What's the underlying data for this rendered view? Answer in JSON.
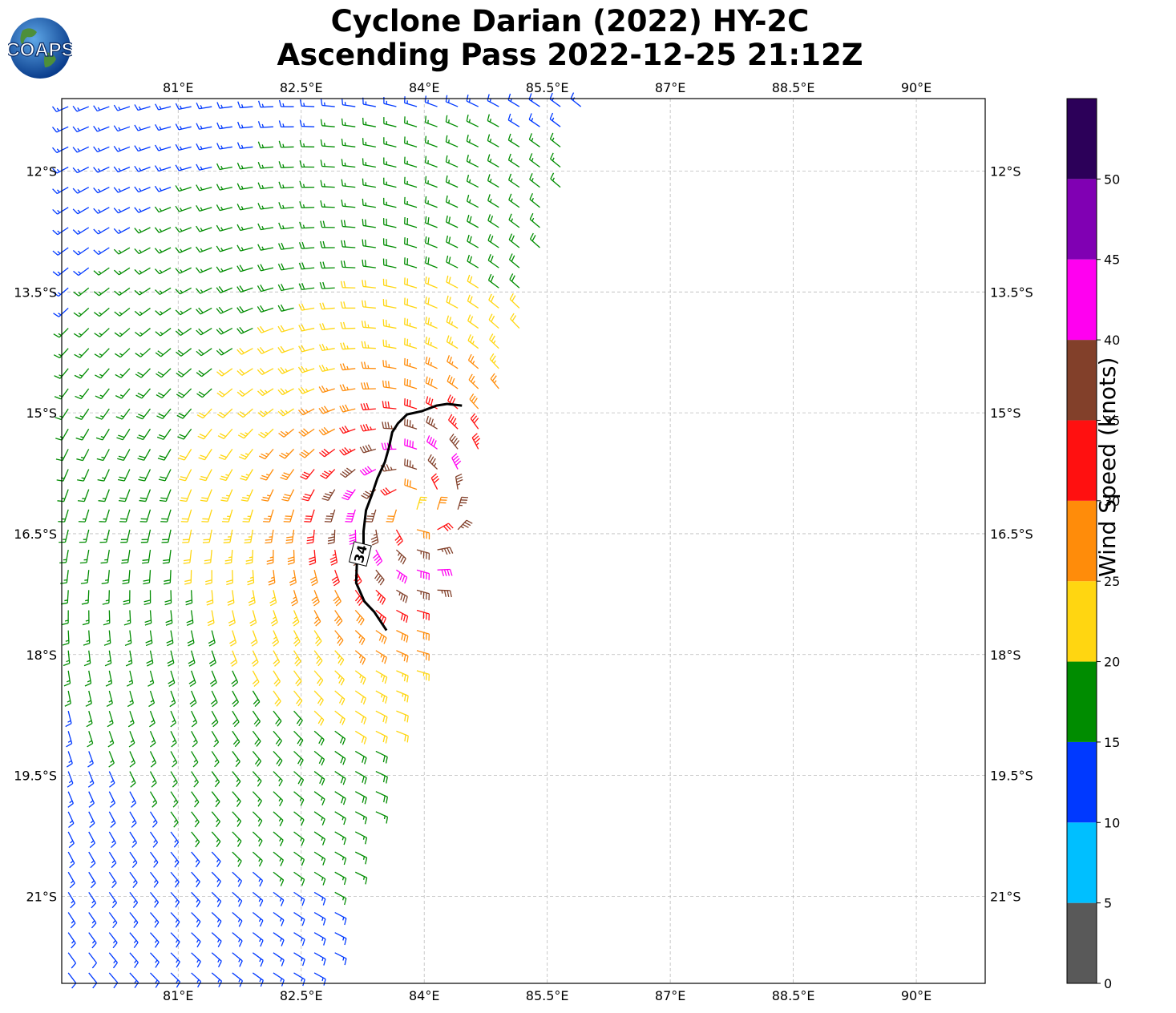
{
  "title": {
    "line1": "Cyclone Darian (2022) HY-2C",
    "line2": "Ascending Pass 2022-12-25 21:12Z"
  },
  "logo": {
    "text": "COAPS",
    "icon": "globe-logo-icon"
  },
  "chart_data": {
    "type": "wind-barb-map",
    "x_label": "",
    "y_label": "",
    "x_ticks": [
      "81°E",
      "82.5°E",
      "84°E",
      "85.5°E",
      "87°E",
      "88.5°E",
      "90°E"
    ],
    "x_tick_values": [
      81,
      82.5,
      84,
      85.5,
      87,
      88.5,
      90
    ],
    "y_ticks": [
      "12°S",
      "13.5°S",
      "15°S",
      "16.5°S",
      "18°S",
      "19.5°S",
      "21°S"
    ],
    "y_tick_values": [
      -12,
      -13.5,
      -15,
      -16.5,
      -18,
      -19.5,
      -21
    ],
    "lon_range": [
      79.58,
      90.84
    ],
    "lat_range": [
      -22.08,
      -11.1
    ],
    "grid": true,
    "contour": {
      "label": "34",
      "level_knots": 34,
      "points": [
        [
          84.46,
          -14.91
        ],
        [
          84.28,
          -14.89
        ],
        [
          84.15,
          -14.91
        ],
        [
          83.97,
          -14.98
        ],
        [
          83.79,
          -15.02
        ],
        [
          83.68,
          -15.13
        ],
        [
          83.61,
          -15.24
        ],
        [
          83.57,
          -15.43
        ],
        [
          83.52,
          -15.61
        ],
        [
          83.43,
          -15.81
        ],
        [
          83.36,
          -16.02
        ],
        [
          83.29,
          -16.21
        ],
        [
          83.26,
          -16.47
        ],
        [
          83.26,
          -16.7
        ],
        [
          83.18,
          -16.83
        ],
        [
          83.17,
          -17.11
        ],
        [
          83.27,
          -17.34
        ],
        [
          83.39,
          -17.47
        ],
        [
          83.54,
          -17.7
        ]
      ]
    },
    "colorbar": {
      "label": "Wind Speed (knots)",
      "ticks": [
        "0",
        "5",
        "10",
        "15",
        "20",
        "25",
        "30",
        "35",
        "40",
        "45",
        "50"
      ],
      "bins": [
        {
          "min": 0,
          "max": 5,
          "color": "#595959"
        },
        {
          "min": 5,
          "max": 10,
          "color": "#00bfff"
        },
        {
          "min": 10,
          "max": 15,
          "color": "#0039ff"
        },
        {
          "min": 15,
          "max": 20,
          "color": "#008c00"
        },
        {
          "min": 20,
          "max": 25,
          "color": "#ffd611"
        },
        {
          "min": 25,
          "max": 30,
          "color": "#ff8c0a"
        },
        {
          "min": 30,
          "max": 35,
          "color": "#ff1010"
        },
        {
          "min": 35,
          "max": 40,
          "color": "#82402a"
        },
        {
          "min": 40,
          "max": 45,
          "color": "#ff00f0"
        },
        {
          "min": 45,
          "max": 50,
          "color": "#8000b3"
        },
        {
          "min": 50,
          "max": 55,
          "color": "#2c0059"
        }
      ]
    },
    "wind_field": {
      "center": [
        83.9,
        -16.2
      ],
      "max_knots": 42,
      "radius_of_max_deg": 0.75,
      "swath_right_edge_lon_at_top": 86.0,
      "swath_right_edge_lon_at_bottom": 82.8
    }
  }
}
